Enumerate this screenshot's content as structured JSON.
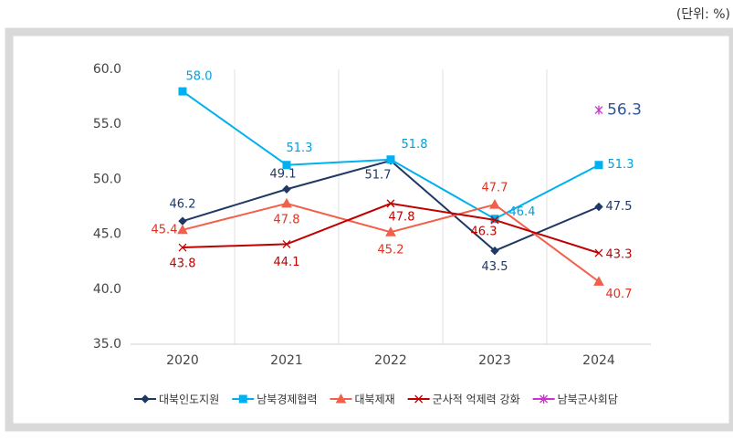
{
  "chart_data": {
    "type": "line",
    "unit_note": "(단위: %)",
    "categories": [
      "2020",
      "2021",
      "2022",
      "2023",
      "2024"
    ],
    "ylim": [
      35,
      60
    ],
    "yticks": [
      {
        "value": 35,
        "label": "35.0"
      },
      {
        "value": 40,
        "label": "40.0"
      },
      {
        "value": 45,
        "label": "45.0"
      },
      {
        "value": 50,
        "label": "50.0"
      },
      {
        "value": 55,
        "label": "55.0"
      },
      {
        "value": 60,
        "label": "60.0"
      }
    ],
    "legend": "bottom",
    "series": [
      {
        "name": "대북인도지원",
        "color": "#1f3864",
        "marker": "diamond",
        "values": [
          46.2,
          49.1,
          51.7,
          43.5,
          47.5
        ],
        "value_labels": [
          "46.2",
          "49.1",
          "51.7",
          "43.5",
          "47.5"
        ]
      },
      {
        "name": "남북경제협력",
        "color": "#00b0f0",
        "marker": "square",
        "values": [
          58.0,
          51.3,
          51.8,
          46.4,
          51.3
        ],
        "value_labels": [
          "58.0",
          "51.3",
          "51.8",
          "46.4",
          "51.3"
        ]
      },
      {
        "name": "대북제재",
        "color": "#f0604a",
        "marker": "triangle",
        "values": [
          45.4,
          47.8,
          45.2,
          47.7,
          40.7
        ],
        "value_labels": [
          "45.4",
          "47.8",
          "45.2",
          "47.7",
          "40.7"
        ]
      },
      {
        "name": "군사적 억제력 강화",
        "color": "#c00000",
        "marker": "cross",
        "values": [
          43.8,
          44.1,
          47.8,
          46.3,
          43.3
        ],
        "value_labels": [
          "43.8",
          "44.1",
          "47.8",
          "46.3",
          "43.3"
        ]
      },
      {
        "name": "남북군사회담",
        "color": "#cc33cc",
        "marker": "star",
        "values": [
          null,
          null,
          null,
          null,
          56.3
        ],
        "value_labels": [
          null,
          null,
          null,
          null,
          "56.3"
        ]
      }
    ]
  }
}
